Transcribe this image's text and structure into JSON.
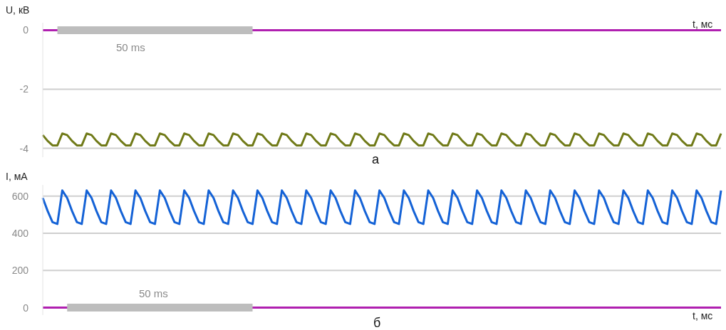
{
  "chart_data": [
    {
      "type": "line",
      "ylabel": "U, кВ",
      "xlabel": "t, мс",
      "annotations": [
        "50 ms",
        "а"
      ],
      "grid": "y",
      "tick_labels": "y",
      "ylim": [
        -4.3,
        0.25
      ],
      "yticks": [
        0,
        -2,
        -4
      ],
      "ref_lines": [
        {
          "axis": "y",
          "value": 0,
          "color": "#b01fb0"
        }
      ],
      "categories": [
        null,
        null,
        null,
        null,
        null,
        null,
        null,
        null,
        null,
        null,
        null,
        null,
        null,
        null,
        null,
        null,
        null,
        null,
        null,
        null,
        null,
        null,
        null,
        null,
        null,
        null,
        null,
        null,
        null,
        null,
        null,
        null,
        null,
        null,
        null,
        null,
        null,
        null,
        null,
        null,
        null,
        null,
        null,
        null,
        null,
        null,
        null,
        null,
        null,
        null,
        null,
        null,
        null,
        null,
        null,
        null,
        null,
        null,
        null,
        null,
        null,
        null,
        null,
        null,
        null,
        null,
        null,
        null,
        null,
        null,
        null,
        null,
        null,
        null,
        null,
        null,
        null,
        null,
        null,
        null,
        null,
        null,
        null,
        null,
        null,
        null,
        null,
        null,
        null,
        null,
        null,
        null,
        null,
        null,
        null,
        null,
        null,
        null,
        null,
        null,
        null,
        null,
        null,
        null,
        null,
        null,
        null,
        null,
        null,
        null,
        null,
        null,
        null,
        null,
        null,
        null,
        null,
        null,
        null,
        null,
        null,
        null,
        null,
        null,
        null,
        null,
        null,
        null,
        null,
        null,
        null,
        null,
        null,
        null,
        null,
        null,
        null,
        null,
        null,
        null
      ],
      "series": [
        {
          "color": "#707a18",
          "values": [
            -3.55,
            -3.75,
            -3.9,
            -3.9,
            -3.5,
            -3.55,
            -3.75,
            -3.9,
            -3.9,
            -3.5,
            -3.55,
            -3.75,
            -3.9,
            -3.9,
            -3.5,
            -3.55,
            -3.75,
            -3.9,
            -3.9,
            -3.5,
            -3.55,
            -3.75,
            -3.9,
            -3.9,
            -3.5,
            -3.55,
            -3.75,
            -3.9,
            -3.9,
            -3.5,
            -3.55,
            -3.75,
            -3.9,
            -3.9,
            -3.5,
            -3.55,
            -3.75,
            -3.9,
            -3.9,
            -3.5,
            -3.55,
            -3.75,
            -3.9,
            -3.9,
            -3.5,
            -3.55,
            -3.75,
            -3.9,
            -3.9,
            -3.5,
            -3.55,
            -3.75,
            -3.9,
            -3.9,
            -3.5,
            -3.55,
            -3.75,
            -3.9,
            -3.9,
            -3.5,
            -3.55,
            -3.75,
            -3.9,
            -3.9,
            -3.5,
            -3.55,
            -3.75,
            -3.9,
            -3.9,
            -3.5,
            -3.55,
            -3.75,
            -3.9,
            -3.9,
            -3.5,
            -3.55,
            -3.75,
            -3.9,
            -3.9,
            -3.5,
            -3.55,
            -3.75,
            -3.9,
            -3.9,
            -3.5,
            -3.55,
            -3.75,
            -3.9,
            -3.9,
            -3.5,
            -3.55,
            -3.75,
            -3.9,
            -3.9,
            -3.5,
            -3.55,
            -3.75,
            -3.9,
            -3.9,
            -3.5,
            -3.55,
            -3.75,
            -3.9,
            -3.9,
            -3.5,
            -3.55,
            -3.75,
            -3.9,
            -3.9,
            -3.5,
            -3.55,
            -3.75,
            -3.9,
            -3.9,
            -3.5,
            -3.55,
            -3.75,
            -3.9,
            -3.9,
            -3.5,
            -3.55,
            -3.75,
            -3.9,
            -3.9,
            -3.5,
            -3.55,
            -3.75,
            -3.9,
            -3.9,
            -3.5,
            -3.55,
            -3.75,
            -3.9,
            -3.9,
            -3.5,
            -3.55,
            -3.75,
            -3.9,
            -3.9,
            -3.5
          ]
        },
        {
          "color": "#bdbdbd",
          "values": [
            null,
            null,
            null,
            0,
            0,
            0,
            0,
            0,
            0,
            0,
            0,
            0,
            0,
            0,
            0,
            0,
            0,
            0,
            0,
            0,
            0,
            0,
            0,
            0,
            0,
            0,
            0,
            0,
            0,
            0,
            0,
            0,
            0,
            0,
            0,
            0,
            0,
            0,
            0,
            0,
            0,
            0,
            0,
            0,
            null,
            null,
            null,
            null,
            null,
            null,
            null,
            null,
            null,
            null,
            null,
            null,
            null,
            null,
            null,
            null,
            null,
            null,
            null,
            null,
            null,
            null,
            null,
            null,
            null,
            null,
            null,
            null,
            null,
            null,
            null,
            null,
            null,
            null,
            null,
            null,
            null,
            null,
            null,
            null,
            null,
            null,
            null,
            null,
            null,
            null,
            null,
            null,
            null,
            null,
            null,
            null,
            null,
            null,
            null,
            null,
            null,
            null,
            null,
            null,
            null,
            null,
            null,
            null,
            null,
            null,
            null,
            null,
            null,
            null,
            null,
            null,
            null,
            null,
            null,
            null,
            null,
            null,
            null,
            null,
            null,
            null,
            null,
            null,
            null,
            null,
            null,
            null,
            null,
            null,
            null,
            null,
            null,
            null,
            null,
            null
          ]
        }
      ]
    },
    {
      "type": "line",
      "ylabel": "I, мА",
      "xlabel": "t, мс",
      "annotations": [
        "50 ms",
        "б"
      ],
      "grid": "y",
      "tick_labels": "y",
      "ylim": [
        -40,
        660
      ],
      "yticks": [
        0,
        200,
        400,
        600
      ],
      "ref_lines": [
        {
          "axis": "y",
          "value": 0,
          "color": "#b01fb0"
        }
      ],
      "categories": [
        null,
        null,
        null,
        null,
        null,
        null,
        null,
        null,
        null,
        null,
        null,
        null,
        null,
        null,
        null,
        null,
        null,
        null,
        null,
        null,
        null,
        null,
        null,
        null,
        null,
        null,
        null,
        null,
        null,
        null,
        null,
        null,
        null,
        null,
        null,
        null,
        null,
        null,
        null,
        null,
        null,
        null,
        null,
        null,
        null,
        null,
        null,
        null,
        null,
        null,
        null,
        null,
        null,
        null,
        null,
        null,
        null,
        null,
        null,
        null,
        null,
        null,
        null,
        null,
        null,
        null,
        null,
        null,
        null,
        null,
        null,
        null,
        null,
        null,
        null,
        null,
        null,
        null,
        null,
        null,
        null,
        null,
        null,
        null,
        null,
        null,
        null,
        null,
        null,
        null,
        null,
        null,
        null,
        null,
        null,
        null,
        null,
        null,
        null,
        null,
        null,
        null,
        null,
        null,
        null,
        null,
        null,
        null,
        null,
        null,
        null,
        null,
        null,
        null,
        null,
        null,
        null,
        null,
        null,
        null,
        null,
        null,
        null,
        null,
        null,
        null,
        null,
        null,
        null,
        null,
        null,
        null,
        null,
        null,
        null,
        null,
        null,
        null,
        null,
        null
      ],
      "series": [
        {
          "color": "#1462d6",
          "values": [
            590,
            520,
            460,
            450,
            630,
            590,
            520,
            460,
            450,
            630,
            590,
            520,
            460,
            450,
            630,
            590,
            520,
            460,
            450,
            630,
            590,
            520,
            460,
            450,
            630,
            590,
            520,
            460,
            450,
            630,
            590,
            520,
            460,
            450,
            630,
            590,
            520,
            460,
            450,
            630,
            590,
            520,
            460,
            450,
            630,
            590,
            520,
            460,
            450,
            630,
            590,
            520,
            460,
            450,
            630,
            590,
            520,
            460,
            450,
            630,
            590,
            520,
            460,
            450,
            630,
            590,
            520,
            460,
            450,
            630,
            590,
            520,
            460,
            450,
            630,
            590,
            520,
            460,
            450,
            630,
            590,
            520,
            460,
            450,
            630,
            590,
            520,
            460,
            450,
            630,
            590,
            520,
            460,
            450,
            630,
            590,
            520,
            460,
            450,
            630,
            590,
            520,
            460,
            450,
            630,
            590,
            520,
            460,
            450,
            630,
            590,
            520,
            460,
            450,
            630,
            590,
            520,
            460,
            450,
            630,
            590,
            520,
            460,
            450,
            630,
            590,
            520,
            460,
            450,
            630,
            590,
            520,
            460,
            450,
            630,
            590,
            520,
            460,
            450,
            630
          ]
        },
        {
          "color": "#bdbdbd",
          "values": [
            null,
            null,
            null,
            null,
            null,
            0,
            0,
            0,
            0,
            0,
            0,
            0,
            0,
            0,
            0,
            0,
            0,
            0,
            0,
            0,
            0,
            0,
            0,
            0,
            0,
            0,
            0,
            0,
            0,
            0,
            0,
            0,
            0,
            0,
            0,
            0,
            0,
            0,
            0,
            0,
            0,
            0,
            0,
            0,
            null,
            null,
            null,
            null,
            null,
            null,
            null,
            null,
            null,
            null,
            null,
            null,
            null,
            null,
            null,
            null,
            null,
            null,
            null,
            null,
            null,
            null,
            null,
            null,
            null,
            null,
            null,
            null,
            null,
            null,
            null,
            null,
            null,
            null,
            null,
            null,
            null,
            null,
            null,
            null,
            null,
            null,
            null,
            null,
            null,
            null,
            null,
            null,
            null,
            null,
            null,
            null,
            null,
            null,
            null,
            null,
            null,
            null,
            null,
            null,
            null,
            null,
            null,
            null,
            null,
            null,
            null,
            null,
            null,
            null,
            null,
            null,
            null,
            null,
            null,
            null,
            null,
            null,
            null,
            null,
            null,
            null,
            null,
            null,
            null,
            null,
            null,
            null,
            null,
            null,
            null,
            null,
            null,
            null,
            null,
            null
          ]
        }
      ]
    }
  ]
}
